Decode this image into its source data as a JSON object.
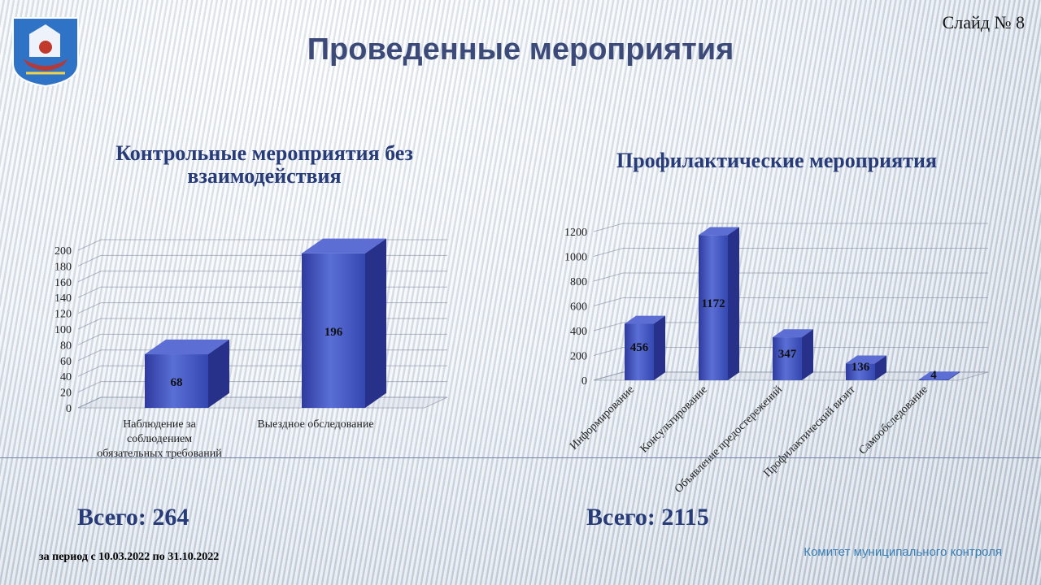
{
  "slide_number": "Слайд № 8",
  "title": "Проведенные мероприятия",
  "charts": {
    "left_total": "Всего: 264",
    "right_total": "Всего: 2115"
  },
  "footer": {
    "period": "за период с 10.03.2022 по 31.10.2022",
    "committee": "Комитет муниципального контроля"
  },
  "chart_data": [
    {
      "type": "bar",
      "title": "Контрольные мероприятия без взаимодействия",
      "categories": [
        "Наблюдение за соблюдением обязательных требований",
        "Выездное обследование"
      ],
      "category_lines": [
        [
          "Наблюдение за",
          "соблюдением",
          "обязательных требований"
        ],
        [
          "Выездное обследование"
        ]
      ],
      "values": [
        68,
        196
      ],
      "ylim": [
        0,
        200
      ],
      "yticks": [
        0,
        20,
        40,
        60,
        80,
        100,
        120,
        140,
        160,
        180,
        200
      ],
      "grid": true,
      "bar_color": "#3f51b5"
    },
    {
      "type": "bar",
      "title": "Профилактические мероприятия",
      "categories": [
        "Информирование",
        "Консультирование",
        "Объявление предостережений",
        "Профилактический визит",
        "Самообследование"
      ],
      "values": [
        456,
        1172,
        347,
        136,
        4
      ],
      "ylim": [
        0,
        1200
      ],
      "yticks": [
        0,
        200,
        400,
        600,
        800,
        1000,
        1200
      ],
      "grid": true,
      "bar_color": "#3f51b5"
    }
  ]
}
